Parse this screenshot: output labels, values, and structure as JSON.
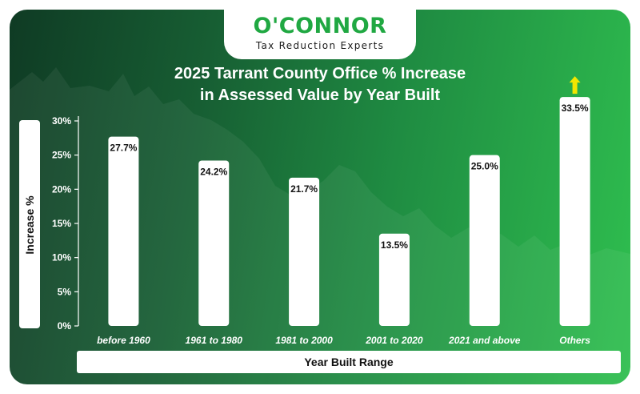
{
  "brand": {
    "name": "O'CONNOR",
    "tagline": "Tax Reduction Experts"
  },
  "chart_data": {
    "type": "bar",
    "title_line1": "2025 Tarrant County Office % Increase",
    "title_line2": "in Assessed Value by Year Built",
    "xlabel": "Year Built Range",
    "ylabel": "Increase %",
    "categories": [
      "before 1960",
      "1961 to 1980",
      "1981 to 2000",
      "2001 to 2020",
      "2021 and above",
      "Others"
    ],
    "values": [
      27.7,
      24.2,
      21.7,
      13.5,
      25.0,
      33.5
    ],
    "data_labels": [
      "27.7%",
      "24.2%",
      "21.7%",
      "13.5%",
      "25.0%",
      "33.5%"
    ],
    "y_ticks": [
      0,
      5,
      10,
      15,
      20,
      25,
      30
    ],
    "y_tick_labels": [
      "0%",
      "5%",
      "10%",
      "15%",
      "20%",
      "25%",
      "30%"
    ],
    "ylim": [
      0,
      30
    ],
    "grid": false,
    "annotations": [
      {
        "category": "Others",
        "marker": "up-arrow-icon",
        "color": "#f2e600"
      }
    ],
    "colors": {
      "bar": "#ffffff",
      "background_start": "#0f3b24",
      "background_end": "#2fbf4f",
      "brand_green": "#20a842"
    }
  }
}
